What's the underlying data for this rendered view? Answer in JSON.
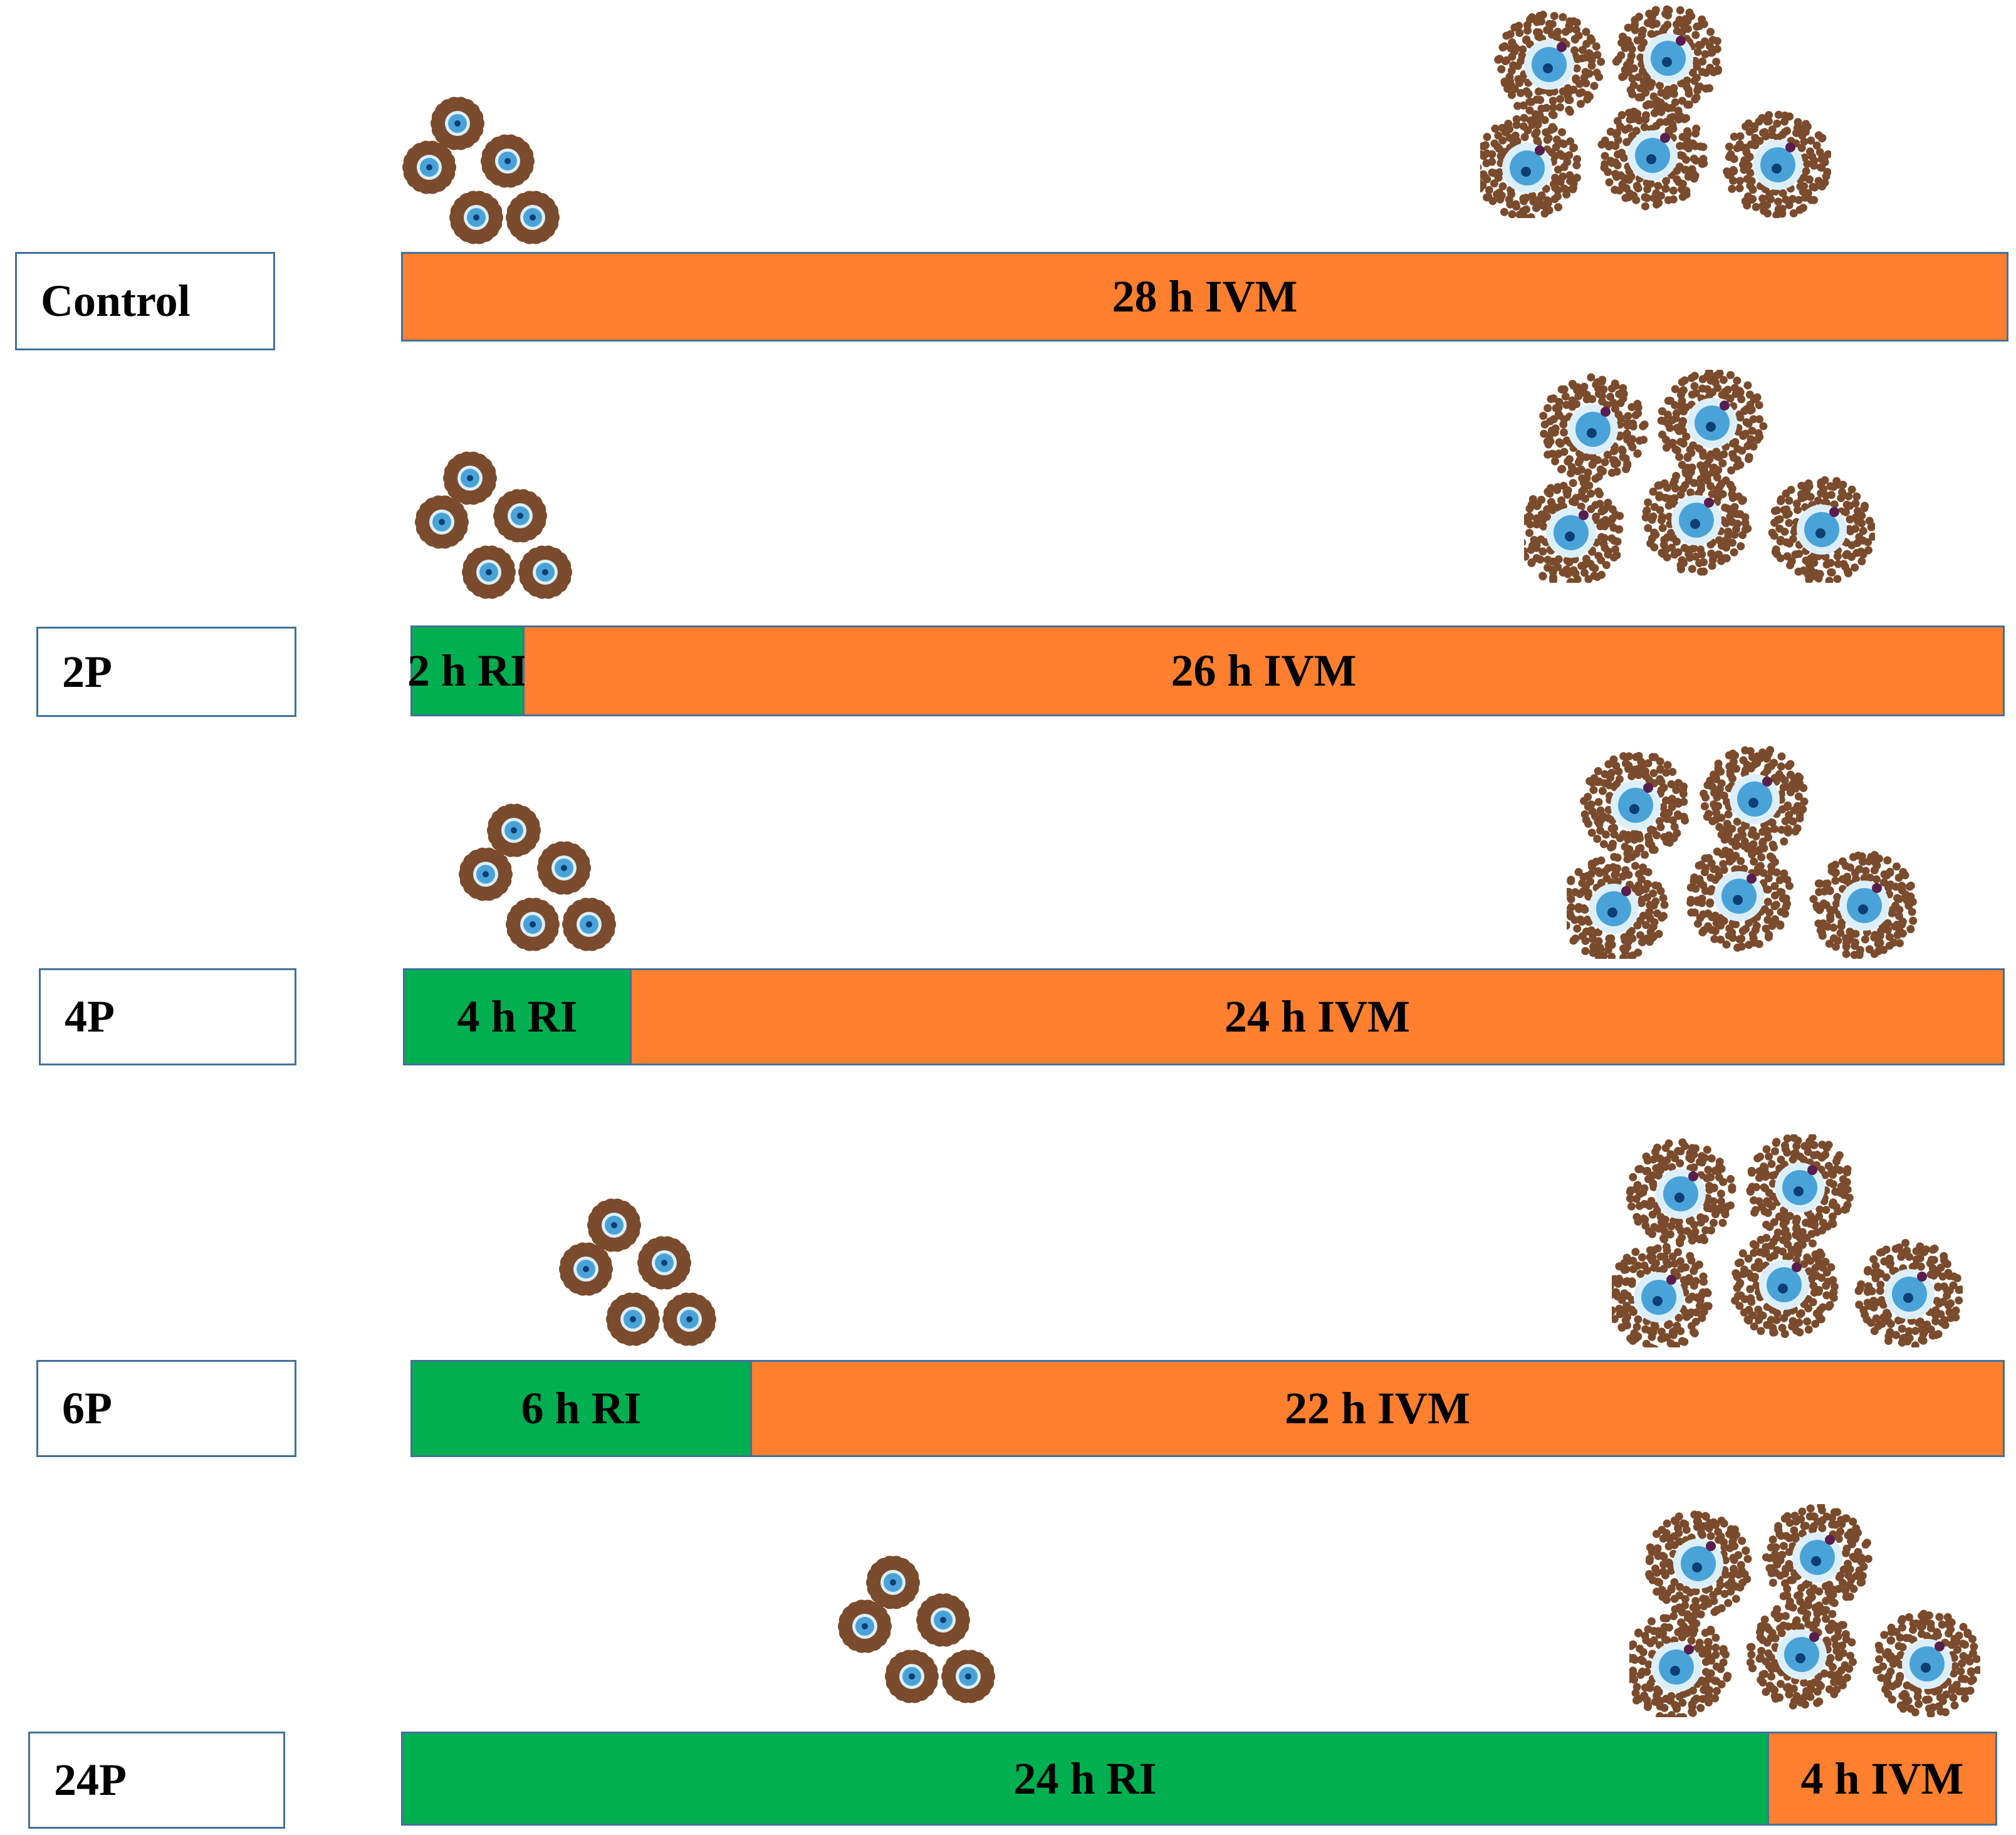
{
  "colors": {
    "ri": "#00b050",
    "ivm": "#fe7f2d",
    "border": "#41719c",
    "cumulus_cell": "#7a4b2c",
    "oocyte_zone": "#dceff8",
    "oocyte": "#4aa3d8",
    "nucleus": "#0d3f74",
    "polar_body": "#5a1e4e"
  },
  "icons": {
    "before": "compact-coc-cluster-icon",
    "after": "expanded-coc-cluster-icon"
  },
  "groups": [
    {
      "id": "control",
      "label": "Control",
      "segments": [
        {
          "kind": "ivm",
          "hours": 28,
          "text": "28 h IVM"
        }
      ]
    },
    {
      "id": "2p",
      "label": "2P",
      "segments": [
        {
          "kind": "ri",
          "hours": 2,
          "text": "2 h RI"
        },
        {
          "kind": "ivm",
          "hours": 26,
          "text": "26 h IVM"
        }
      ]
    },
    {
      "id": "4p",
      "label": "4P",
      "segments": [
        {
          "kind": "ri",
          "hours": 4,
          "text": "4 h RI"
        },
        {
          "kind": "ivm",
          "hours": 24,
          "text": "24 h IVM"
        }
      ]
    },
    {
      "id": "6p",
      "label": "6P",
      "segments": [
        {
          "kind": "ri",
          "hours": 6,
          "text": "6 h RI"
        },
        {
          "kind": "ivm",
          "hours": 22,
          "text": "22 h IVM"
        }
      ]
    },
    {
      "id": "24p",
      "label": "24P",
      "segments": [
        {
          "kind": "ri",
          "hours": 24,
          "text": "24 h RI"
        },
        {
          "kind": "ivm",
          "hours": 4,
          "text": "4 h IVM"
        }
      ]
    }
  ]
}
